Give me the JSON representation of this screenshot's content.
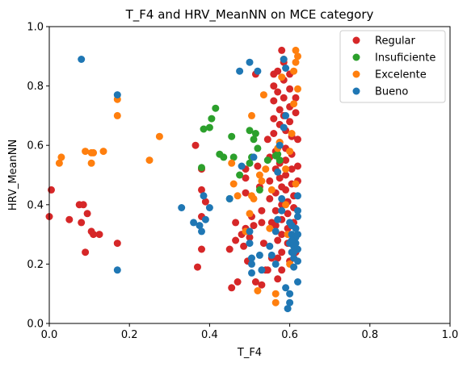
{
  "chart_data": {
    "type": "scatter",
    "title": "T_F4 and HRV_MeanNN on MCE category",
    "xlabel": "T_F4",
    "ylabel": "HRV_MeanNN",
    "xlim": [
      0,
      1
    ],
    "ylim": [
      0,
      1
    ],
    "x_ticks": [
      "0.0",
      "0.2",
      "0.4",
      "0.6",
      "0.8",
      "1.0"
    ],
    "y_ticks": [
      "0.0",
      "0.2",
      "0.4",
      "0.6",
      "0.8",
      "1.0"
    ],
    "grid": false,
    "legend_position": "top-right",
    "series": [
      {
        "name": "Regular",
        "color": "#d62728",
        "points": [
          [
            0.0,
            0.36
          ],
          [
            0.005,
            0.45
          ],
          [
            0.05,
            0.35
          ],
          [
            0.075,
            0.4
          ],
          [
            0.085,
            0.4
          ],
          [
            0.08,
            0.34
          ],
          [
            0.095,
            0.37
          ],
          [
            0.09,
            0.24
          ],
          [
            0.105,
            0.31
          ],
          [
            0.11,
            0.3
          ],
          [
            0.125,
            0.3
          ],
          [
            0.17,
            0.27
          ],
          [
            0.365,
            0.6
          ],
          [
            0.37,
            0.19
          ],
          [
            0.38,
            0.52
          ],
          [
            0.38,
            0.45
          ],
          [
            0.39,
            0.41
          ],
          [
            0.38,
            0.36
          ],
          [
            0.38,
            0.25
          ],
          [
            0.45,
            0.25
          ],
          [
            0.455,
            0.12
          ],
          [
            0.465,
            0.28
          ],
          [
            0.465,
            0.34
          ],
          [
            0.47,
            0.14
          ],
          [
            0.48,
            0.3
          ],
          [
            0.485,
            0.26
          ],
          [
            0.49,
            0.32
          ],
          [
            0.49,
            0.44
          ],
          [
            0.49,
            0.49
          ],
          [
            0.49,
            0.52
          ],
          [
            0.495,
            0.21
          ],
          [
            0.5,
            0.29
          ],
          [
            0.505,
            0.36
          ],
          [
            0.51,
            0.33
          ],
          [
            0.515,
            0.84
          ],
          [
            0.515,
            0.14
          ],
          [
            0.52,
            0.53
          ],
          [
            0.525,
            0.46
          ],
          [
            0.53,
            0.38
          ],
          [
            0.53,
            0.34
          ],
          [
            0.53,
            0.13
          ],
          [
            0.535,
            0.27
          ],
          [
            0.54,
            0.18
          ],
          [
            0.545,
            0.18
          ],
          [
            0.545,
            0.62
          ],
          [
            0.55,
            0.56
          ],
          [
            0.55,
            0.48
          ],
          [
            0.55,
            0.42
          ],
          [
            0.555,
            0.34
          ],
          [
            0.555,
            0.22
          ],
          [
            0.56,
            0.84
          ],
          [
            0.56,
            0.8
          ],
          [
            0.56,
            0.75
          ],
          [
            0.56,
            0.69
          ],
          [
            0.56,
            0.64
          ],
          [
            0.565,
            0.58
          ],
          [
            0.565,
            0.52
          ],
          [
            0.565,
            0.44
          ],
          [
            0.565,
            0.38
          ],
          [
            0.565,
            0.33
          ],
          [
            0.57,
            0.28
          ],
          [
            0.57,
            0.22
          ],
          [
            0.57,
            0.15
          ],
          [
            0.57,
            0.85
          ],
          [
            0.57,
            0.78
          ],
          [
            0.575,
            0.72
          ],
          [
            0.575,
            0.67
          ],
          [
            0.575,
            0.61
          ],
          [
            0.575,
            0.54
          ],
          [
            0.575,
            0.49
          ],
          [
            0.58,
            0.46
          ],
          [
            0.58,
            0.4
          ],
          [
            0.58,
            0.35
          ],
          [
            0.58,
            0.3
          ],
          [
            0.58,
            0.24
          ],
          [
            0.58,
            0.18
          ],
          [
            0.58,
            0.92
          ],
          [
            0.585,
            0.88
          ],
          [
            0.585,
            0.82
          ],
          [
            0.585,
            0.76
          ],
          [
            0.585,
            0.7
          ],
          [
            0.59,
            0.65
          ],
          [
            0.59,
            0.59
          ],
          [
            0.59,
            0.55
          ],
          [
            0.59,
            0.5
          ],
          [
            0.59,
            0.45
          ],
          [
            0.595,
            0.41
          ],
          [
            0.595,
            0.37
          ],
          [
            0.595,
            0.32
          ],
          [
            0.595,
            0.27
          ],
          [
            0.6,
            0.21
          ],
          [
            0.6,
            0.84
          ],
          [
            0.6,
            0.79
          ],
          [
            0.6,
            0.73
          ],
          [
            0.6,
            0.68
          ],
          [
            0.605,
            0.63
          ],
          [
            0.605,
            0.57
          ],
          [
            0.605,
            0.52
          ],
          [
            0.605,
            0.47
          ],
          [
            0.61,
            0.43
          ],
          [
            0.61,
            0.39
          ],
          [
            0.61,
            0.34
          ],
          [
            0.61,
            0.29
          ],
          [
            0.615,
            0.24
          ],
          [
            0.615,
            0.76
          ],
          [
            0.615,
            0.71
          ],
          [
            0.62,
            0.62
          ],
          [
            0.62,
            0.53
          ],
          [
            0.62,
            0.48
          ]
        ]
      },
      {
        "name": "Insuficiente",
        "color": "#2ca02c",
        "points": [
          [
            0.38,
            0.525
          ],
          [
            0.385,
            0.655
          ],
          [
            0.4,
            0.66
          ],
          [
            0.405,
            0.69
          ],
          [
            0.415,
            0.725
          ],
          [
            0.425,
            0.57
          ],
          [
            0.435,
            0.56
          ],
          [
            0.45,
            0.42
          ],
          [
            0.455,
            0.63
          ],
          [
            0.46,
            0.56
          ],
          [
            0.475,
            0.5
          ],
          [
            0.5,
            0.65
          ],
          [
            0.5,
            0.54
          ],
          [
            0.505,
            0.56
          ],
          [
            0.51,
            0.62
          ],
          [
            0.515,
            0.64
          ],
          [
            0.52,
            0.59
          ],
          [
            0.525,
            0.45
          ],
          [
            0.545,
            0.55
          ],
          [
            0.565,
            0.565
          ],
          [
            0.57,
            0.57
          ],
          [
            0.575,
            0.55
          ]
        ]
      },
      {
        "name": "Excelente",
        "color": "#ff7f0e",
        "points": [
          [
            0.025,
            0.54
          ],
          [
            0.03,
            0.56
          ],
          [
            0.09,
            0.58
          ],
          [
            0.105,
            0.54
          ],
          [
            0.11,
            0.575
          ],
          [
            0.105,
            0.575
          ],
          [
            0.135,
            0.58
          ],
          [
            0.17,
            0.7
          ],
          [
            0.17,
            0.755
          ],
          [
            0.25,
            0.55
          ],
          [
            0.275,
            0.63
          ],
          [
            0.455,
            0.54
          ],
          [
            0.46,
            0.47
          ],
          [
            0.47,
            0.43
          ],
          [
            0.49,
            0.31
          ],
          [
            0.5,
            0.37
          ],
          [
            0.505,
            0.43
          ],
          [
            0.505,
            0.7
          ],
          [
            0.51,
            0.42
          ],
          [
            0.52,
            0.11
          ],
          [
            0.525,
            0.5
          ],
          [
            0.53,
            0.48
          ],
          [
            0.535,
            0.77
          ],
          [
            0.54,
            0.52
          ],
          [
            0.55,
            0.32
          ],
          [
            0.555,
            0.45
          ],
          [
            0.565,
            0.1
          ],
          [
            0.565,
            0.07
          ],
          [
            0.57,
            0.59
          ],
          [
            0.575,
            0.61
          ],
          [
            0.58,
            0.83
          ],
          [
            0.585,
            0.89
          ],
          [
            0.59,
            0.52
          ],
          [
            0.59,
            0.4
          ],
          [
            0.595,
            0.3
          ],
          [
            0.6,
            0.2
          ],
          [
            0.6,
            0.58
          ],
          [
            0.605,
            0.64
          ],
          [
            0.61,
            0.74
          ],
          [
            0.61,
            0.85
          ],
          [
            0.615,
            0.88
          ],
          [
            0.615,
            0.92
          ],
          [
            0.62,
            0.9
          ],
          [
            0.62,
            0.79
          ],
          [
            0.615,
            0.47
          ]
        ]
      },
      {
        "name": "Bueno",
        "color": "#1f77b4",
        "points": [
          [
            0.08,
            0.89
          ],
          [
            0.17,
            0.77
          ],
          [
            0.17,
            0.18
          ],
          [
            0.33,
            0.39
          ],
          [
            0.36,
            0.34
          ],
          [
            0.375,
            0.33
          ],
          [
            0.38,
            0.31
          ],
          [
            0.39,
            0.35
          ],
          [
            0.385,
            0.43
          ],
          [
            0.4,
            0.39
          ],
          [
            0.45,
            0.42
          ],
          [
            0.475,
            0.85
          ],
          [
            0.48,
            0.53
          ],
          [
            0.5,
            0.88
          ],
          [
            0.5,
            0.31
          ],
          [
            0.5,
            0.27
          ],
          [
            0.505,
            0.22
          ],
          [
            0.505,
            0.2
          ],
          [
            0.505,
            0.17
          ],
          [
            0.51,
            0.56
          ],
          [
            0.52,
            0.85
          ],
          [
            0.525,
            0.23
          ],
          [
            0.53,
            0.18
          ],
          [
            0.55,
            0.26
          ],
          [
            0.555,
            0.23
          ],
          [
            0.565,
            0.2
          ],
          [
            0.565,
            0.31
          ],
          [
            0.57,
            0.35
          ],
          [
            0.57,
            0.51
          ],
          [
            0.575,
            0.6
          ],
          [
            0.58,
            0.42
          ],
          [
            0.58,
            0.38
          ],
          [
            0.585,
            0.66
          ],
          [
            0.585,
            0.89
          ],
          [
            0.59,
            0.86
          ],
          [
            0.59,
            0.7
          ],
          [
            0.59,
            0.12
          ],
          [
            0.595,
            0.05
          ],
          [
            0.6,
            0.1
          ],
          [
            0.6,
            0.07
          ],
          [
            0.6,
            0.27
          ],
          [
            0.605,
            0.3
          ],
          [
            0.605,
            0.33
          ],
          [
            0.605,
            0.24
          ],
          [
            0.61,
            0.19
          ],
          [
            0.61,
            0.22
          ],
          [
            0.61,
            0.26
          ],
          [
            0.615,
            0.29
          ],
          [
            0.615,
            0.32
          ],
          [
            0.62,
            0.36
          ],
          [
            0.62,
            0.38
          ],
          [
            0.62,
            0.43
          ],
          [
            0.62,
            0.25
          ],
          [
            0.62,
            0.21
          ],
          [
            0.62,
            0.14
          ],
          [
            0.62,
            0.3
          ],
          [
            0.615,
            0.27
          ],
          [
            0.61,
            0.24
          ],
          [
            0.605,
            0.28
          ],
          [
            0.6,
            0.34
          ]
        ]
      }
    ]
  }
}
